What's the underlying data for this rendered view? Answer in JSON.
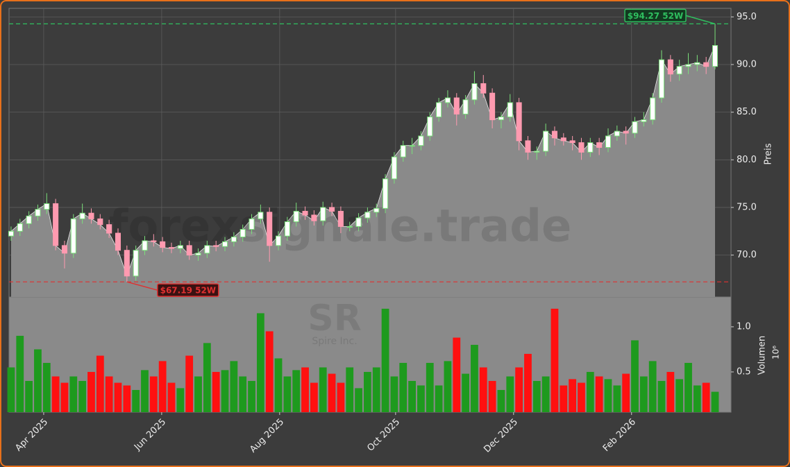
{
  "chart_data": {
    "type": "candlestick",
    "watermark": "forexsignale.trade",
    "symbol": "SR",
    "company": "Spire Inc.",
    "y_label": "Preis",
    "y2_label": "Volumen",
    "y2_scale": "10⁶",
    "up_color": "#7be07b",
    "down_color": "#ff9ab0",
    "volume_up_color": "#1e9a1e",
    "volume_down_color": "#ff1010",
    "area_color": "#8a8a8a",
    "grid": true,
    "xlim": [
      -0.23,
      80.79
    ],
    "xticks": [
      {
        "value": 3.66,
        "label": "Apr 2025"
      },
      {
        "value": 16.9,
        "label": "Jun 2025"
      },
      {
        "value": 30.14,
        "label": "Aug 2025"
      },
      {
        "value": 43.15,
        "label": "Oct 2025"
      },
      {
        "value": 56.39,
        "label": "Dec 2025"
      },
      {
        "value": 69.63,
        "label": "Feb 2026"
      }
    ],
    "ylim": [
      65.6,
      95.9
    ],
    "yticks": [
      {
        "value": 70,
        "label": "70.0"
      },
      {
        "value": 75,
        "label": "75.0"
      },
      {
        "value": 80,
        "label": "80.0"
      },
      {
        "value": 85,
        "label": "85.0"
      },
      {
        "value": 90,
        "label": "90.0"
      },
      {
        "value": 95,
        "label": "95.0"
      }
    ],
    "y2lim": [
      0.054,
      1.33
    ],
    "y2ticks": [
      {
        "value": 0.5,
        "label": "0.5"
      },
      {
        "value": 1.0,
        "label": "1.0"
      }
    ],
    "annotations": [
      {
        "value": 94.27,
        "label": "$94.27 52W",
        "color": "#2fbf5f"
      },
      {
        "value": 67.19,
        "label": "$67.19 52W",
        "color": "#e03030"
      }
    ],
    "open": [
      72.0,
      72.5,
      73.3,
      74.1,
      74.8,
      75.4,
      71.0,
      70.2,
      73.8,
      74.4,
      73.8,
      73.2,
      72.3,
      70.5,
      67.8,
      70.5,
      71.5,
      71.4,
      70.8,
      70.7,
      71.0,
      70.0,
      70.2,
      71.0,
      70.9,
      71.4,
      71.9,
      72.7,
      73.8,
      74.5,
      71.0,
      72.0,
      73.5,
      74.6,
      74.2,
      73.6,
      75.0,
      74.6,
      73.0,
      73.0,
      73.9,
      74.5,
      74.9,
      78.0,
      80.3,
      81.5,
      81.5,
      82.5,
      84.5,
      86.0,
      86.5,
      84.8,
      86.3,
      88.0,
      87.0,
      84.2,
      84.5,
      86.0,
      82.0,
      80.8,
      80.9,
      83.0,
      82.3,
      82.0,
      81.8,
      80.8,
      81.8,
      81.3,
      82.5,
      83.0,
      82.8,
      84.0,
      84.2,
      86.5,
      90.5,
      89.0,
      89.8,
      90.0,
      90.2,
      89.8
    ],
    "high": [
      73.0,
      73.8,
      74.6,
      75.3,
      76.5,
      75.9,
      71.5,
      74.3,
      75.4,
      74.9,
      74.3,
      73.7,
      72.8,
      71.0,
      71.0,
      72.0,
      72.2,
      71.9,
      71.3,
      71.5,
      71.5,
      70.7,
      71.5,
      71.5,
      71.9,
      72.4,
      73.2,
      74.3,
      75.3,
      75.0,
      72.5,
      74.0,
      75.5,
      75.1,
      74.7,
      75.6,
      75.5,
      75.1,
      73.5,
      74.4,
      75.0,
      75.4,
      78.5,
      80.8,
      82.0,
      82.3,
      83.0,
      85.0,
      86.5,
      87.3,
      87.0,
      86.8,
      89.3,
      88.9,
      87.5,
      85.0,
      86.9,
      86.5,
      82.5,
      81.4,
      83.8,
      83.5,
      82.8,
      82.5,
      82.3,
      82.3,
      82.3,
      83.3,
      83.6,
      83.5,
      84.5,
      85.0,
      87.0,
      91.5,
      91.0,
      90.5,
      91.2,
      91.0,
      90.8,
      94.27
    ],
    "low": [
      71.5,
      72.0,
      72.8,
      73.6,
      74.3,
      70.5,
      68.6,
      69.7,
      73.3,
      73.3,
      72.7,
      71.8,
      70.0,
      67.19,
      67.3,
      70.0,
      70.9,
      70.3,
      70.2,
      70.2,
      69.5,
      69.4,
      69.7,
      70.4,
      70.4,
      70.9,
      71.4,
      72.2,
      73.3,
      69.3,
      70.5,
      71.5,
      73.0,
      73.7,
      73.1,
      73.1,
      74.1,
      72.3,
      72.5,
      72.5,
      73.4,
      74.0,
      74.4,
      77.5,
      79.8,
      80.6,
      81.0,
      82.0,
      84.0,
      85.5,
      83.6,
      84.3,
      85.8,
      86.5,
      83.3,
      83.3,
      84.0,
      81.0,
      80.0,
      80.0,
      80.4,
      81.5,
      81.5,
      81.0,
      80.0,
      80.3,
      80.5,
      80.8,
      82.0,
      81.6,
      82.3,
      83.5,
      83.7,
      86.0,
      88.2,
      88.3,
      89.0,
      89.3,
      89.0,
      89.5
    ],
    "close": [
      72.5,
      73.3,
      74.1,
      74.8,
      75.4,
      71.0,
      70.2,
      73.8,
      74.4,
      73.8,
      73.2,
      72.3,
      70.5,
      67.8,
      70.5,
      71.5,
      71.4,
      70.8,
      70.7,
      71.0,
      70.0,
      70.2,
      71.0,
      70.9,
      71.4,
      71.9,
      72.7,
      73.8,
      74.5,
      71.0,
      72.0,
      73.5,
      74.6,
      74.2,
      73.6,
      75.0,
      74.6,
      73.0,
      73.0,
      73.9,
      74.5,
      74.9,
      78.0,
      80.3,
      81.5,
      81.5,
      82.5,
      84.5,
      86.0,
      86.5,
      84.8,
      86.3,
      88.0,
      87.0,
      84.2,
      84.5,
      86.0,
      82.0,
      80.8,
      80.9,
      83.0,
      82.3,
      82.0,
      81.8,
      80.8,
      81.8,
      81.3,
      82.5,
      83.0,
      82.8,
      84.0,
      84.2,
      86.5,
      90.5,
      89.0,
      89.8,
      90.0,
      90.2,
      89.8,
      92.0
    ],
    "volume": [
      0.55,
      0.9,
      0.4,
      0.75,
      0.6,
      0.45,
      0.38,
      0.45,
      0.4,
      0.5,
      0.68,
      0.45,
      0.38,
      0.35,
      0.3,
      0.52,
      0.45,
      0.62,
      0.38,
      0.32,
      0.68,
      0.45,
      0.82,
      0.5,
      0.52,
      0.62,
      0.45,
      0.4,
      1.15,
      0.95,
      0.65,
      0.45,
      0.52,
      0.55,
      0.38,
      0.55,
      0.48,
      0.38,
      0.55,
      0.32,
      0.5,
      0.55,
      1.2,
      0.45,
      0.6,
      0.4,
      0.35,
      0.6,
      0.35,
      0.62,
      0.88,
      0.48,
      0.8,
      0.55,
      0.4,
      0.3,
      0.45,
      0.55,
      0.7,
      0.4,
      0.45,
      1.2,
      0.35,
      0.42,
      0.38,
      0.5,
      0.45,
      0.42,
      0.35,
      0.48,
      0.85,
      0.45,
      0.62,
      0.4,
      0.5,
      0.42,
      0.6,
      0.35,
      0.38,
      0.28
    ]
  }
}
